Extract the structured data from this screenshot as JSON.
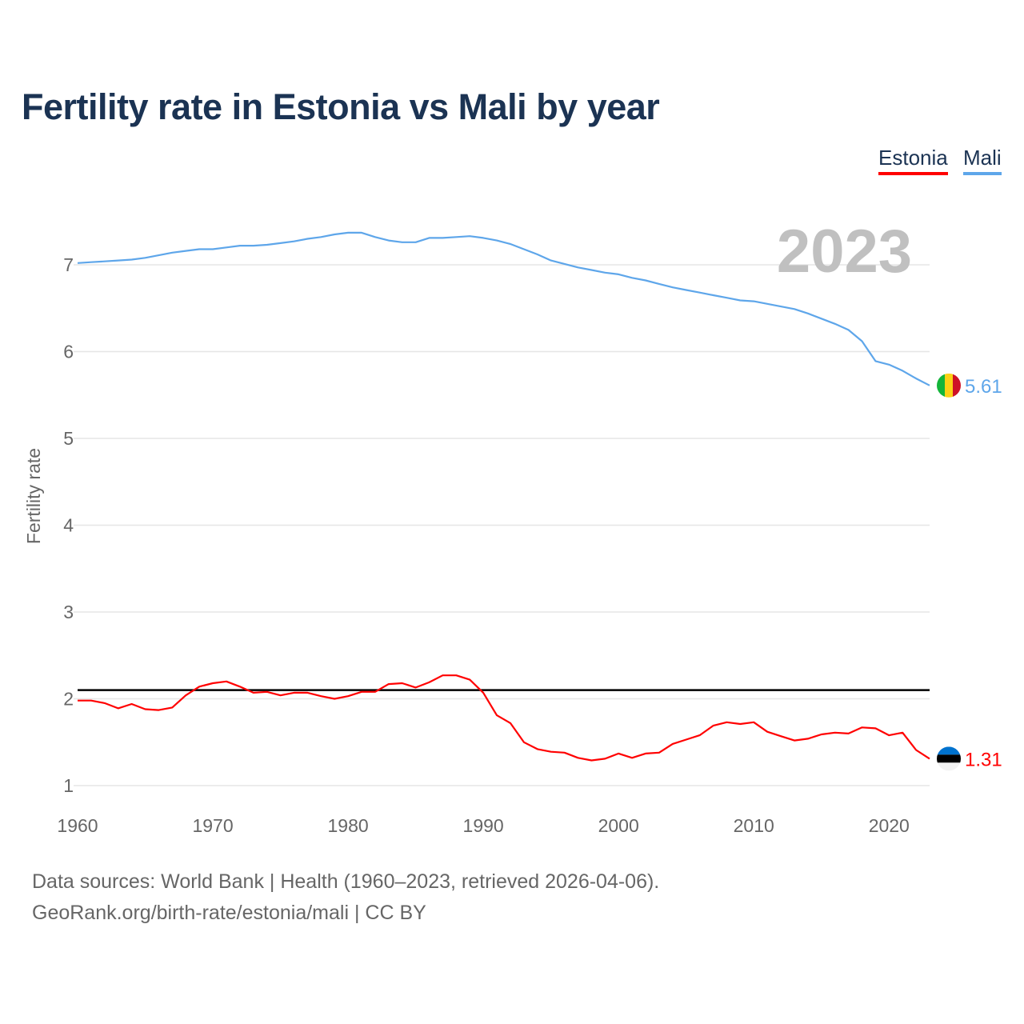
{
  "chart_data": {
    "type": "line",
    "title": "Fertility rate in Estonia vs Mali by year",
    "xlabel": "",
    "ylabel": "Fertility rate",
    "xlim": [
      1960,
      2023
    ],
    "ylim": [
      1,
      7.5
    ],
    "yticks": [
      1,
      2,
      3,
      4,
      5,
      6,
      7
    ],
    "xticks": [
      1960,
      1970,
      1980,
      1990,
      2000,
      2010,
      2020
    ],
    "grid": true,
    "legend": "top-right",
    "year_label": "2023",
    "reference_line": {
      "value": 2.1,
      "color": "#000000"
    },
    "x_start": 1960,
    "series": [
      {
        "name": "Estonia",
        "color": "#ff0000",
        "end_label": "1.31",
        "values": [
          1.98,
          1.98,
          1.95,
          1.89,
          1.94,
          1.88,
          1.87,
          1.9,
          2.04,
          2.14,
          2.18,
          2.2,
          2.14,
          2.07,
          2.08,
          2.04,
          2.07,
          2.07,
          2.03,
          2.0,
          2.03,
          2.08,
          2.08,
          2.17,
          2.18,
          2.13,
          2.19,
          2.27,
          2.27,
          2.22,
          2.07,
          1.81,
          1.72,
          1.5,
          1.42,
          1.39,
          1.38,
          1.32,
          1.29,
          1.31,
          1.37,
          1.32,
          1.37,
          1.38,
          1.48,
          1.53,
          1.58,
          1.69,
          1.73,
          1.71,
          1.73,
          1.62,
          1.57,
          1.52,
          1.54,
          1.59,
          1.61,
          1.6,
          1.67,
          1.66,
          1.58,
          1.61,
          1.41,
          1.31
        ]
      },
      {
        "name": "Mali",
        "color": "#5ea6ea",
        "end_label": "5.61",
        "values": [
          7.02,
          7.03,
          7.04,
          7.05,
          7.06,
          7.08,
          7.11,
          7.14,
          7.16,
          7.18,
          7.18,
          7.2,
          7.22,
          7.22,
          7.23,
          7.25,
          7.27,
          7.3,
          7.32,
          7.35,
          7.37,
          7.37,
          7.32,
          7.28,
          7.26,
          7.26,
          7.31,
          7.31,
          7.32,
          7.33,
          7.31,
          7.28,
          7.24,
          7.18,
          7.12,
          7.05,
          7.01,
          6.97,
          6.94,
          6.91,
          6.89,
          6.85,
          6.82,
          6.78,
          6.74,
          6.71,
          6.68,
          6.65,
          6.62,
          6.59,
          6.58,
          6.55,
          6.52,
          6.49,
          6.44,
          6.38,
          6.32,
          6.25,
          6.12,
          5.89,
          5.85,
          5.78,
          5.69,
          5.61
        ]
      }
    ]
  },
  "legend": {
    "estonia": "Estonia",
    "mali": "Mali"
  },
  "footer": {
    "source": "Data sources: World Bank | Health (1960–2023, retrieved 2026-04-06).",
    "credit": "GeoRank.org/birth-rate/estonia/mali | CC BY"
  }
}
